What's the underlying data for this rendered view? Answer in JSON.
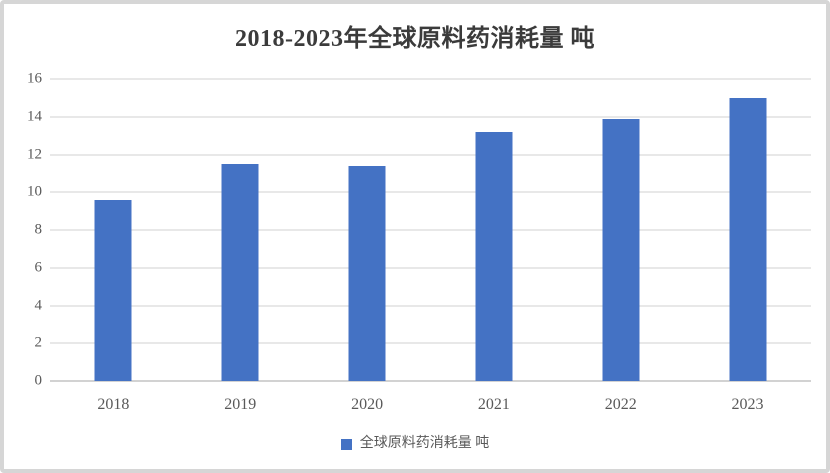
{
  "title": "2018-2023年全球原料药消耗量 吨",
  "colors": {
    "bar": "#4472C4",
    "gridline": "#e8e8e8",
    "axis_line": "#d2d2d2",
    "title_text": "#3b3b3b",
    "tick_text": "#595959",
    "frame_border": "#d6d6d6",
    "background": "#ffffff"
  },
  "legend": {
    "label": "全球原料药消耗量 吨",
    "swatch_color": "#4472C4"
  },
  "chart_data": {
    "type": "bar",
    "title": "2018-2023年全球原料药消耗量 吨",
    "categories": [
      "2018",
      "2019",
      "2020",
      "2021",
      "2022",
      "2023"
    ],
    "values": [
      9.6,
      11.5,
      11.4,
      13.2,
      13.9,
      15.0
    ],
    "series": [
      {
        "name": "全球原料药消耗量 吨",
        "values": [
          9.6,
          11.5,
          11.4,
          13.2,
          13.9,
          15.0
        ]
      }
    ],
    "xlabel": "",
    "ylabel": "",
    "ylim": [
      0,
      16
    ],
    "yticks": [
      0,
      2,
      4,
      6,
      8,
      10,
      12,
      14,
      16
    ],
    "grid": true,
    "legend_position": "bottom"
  }
}
